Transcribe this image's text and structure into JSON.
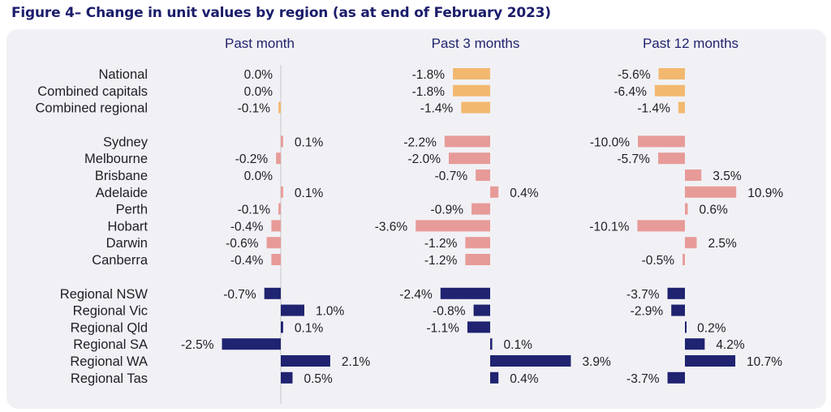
{
  "title": "Figure 4– Change in unit values by region (as at end of February 2023)",
  "colors": {
    "aggregate": "#f2b870",
    "city": "#e79b98",
    "regional": "#1f2370",
    "background": "#f1f1f5",
    "axis": "#c8c8cc",
    "title": "#1b1d6b"
  },
  "chart_data": {
    "type": "bar",
    "orientation": "horizontal",
    "unit": "%",
    "categories": [
      "National",
      "Combined capitals",
      "Combined regional",
      "Sydney",
      "Melbourne",
      "Brisbane",
      "Adelaide",
      "Perth",
      "Hobart",
      "Darwin",
      "Canberra",
      "Regional NSW",
      "Regional Vic",
      "Regional Qld",
      "Regional SA",
      "Regional WA",
      "Regional Tas"
    ],
    "groups": [
      "aggregate",
      "aggregate",
      "aggregate",
      "city",
      "city",
      "city",
      "city",
      "city",
      "city",
      "city",
      "city",
      "regional",
      "regional",
      "regional",
      "regional",
      "regional",
      "regional"
    ],
    "series": [
      {
        "name": "Past month",
        "values": [
          0.0,
          0.0,
          -0.1,
          0.1,
          -0.2,
          0.0,
          0.1,
          -0.1,
          -0.4,
          -0.6,
          -0.4,
          -0.7,
          1.0,
          0.1,
          -2.5,
          2.1,
          0.5
        ],
        "labels": [
          "0.0%",
          "0.0%",
          "-0.1%",
          "0.1%",
          "-0.2%",
          "0.0%",
          "0.1%",
          "-0.1%",
          "-0.4%",
          "-0.6%",
          "-0.4%",
          "-0.7%",
          "1.0%",
          "0.1%",
          "-2.5%",
          "2.1%",
          "0.5%"
        ]
      },
      {
        "name": "Past 3 months",
        "values": [
          -1.8,
          -1.8,
          -1.4,
          -2.2,
          -2.0,
          -0.7,
          0.4,
          -0.9,
          -3.6,
          -1.2,
          -1.2,
          -2.4,
          -0.8,
          -1.1,
          0.1,
          3.9,
          0.4
        ],
        "labels": [
          "-1.8%",
          "-1.8%",
          "-1.4%",
          "-2.2%",
          "-2.0%",
          "-0.7%",
          "0.4%",
          "-0.9%",
          "-3.6%",
          "-1.2%",
          "-1.2%",
          "-2.4%",
          "-0.8%",
          "-1.1%",
          "0.1%",
          "3.9%",
          "0.4%"
        ]
      },
      {
        "name": "Past 12 months",
        "values": [
          -5.6,
          -6.4,
          -1.4,
          -10.0,
          -5.7,
          3.5,
          10.9,
          0.6,
          -10.1,
          2.5,
          -0.5,
          -3.7,
          -2.9,
          0.2,
          4.2,
          10.7,
          -3.7
        ],
        "labels": [
          "-5.6%",
          "-6.4%",
          "-1.4%",
          "-10.0%",
          "-5.7%",
          "3.5%",
          "10.9%",
          "0.6%",
          "-10.1%",
          "2.5%",
          "-0.5%",
          "-3.7%",
          "-2.9%",
          "0.2%",
          "4.2%",
          "10.7%",
          "-3.7%"
        ]
      }
    ],
    "grid": false,
    "legend": "none"
  }
}
